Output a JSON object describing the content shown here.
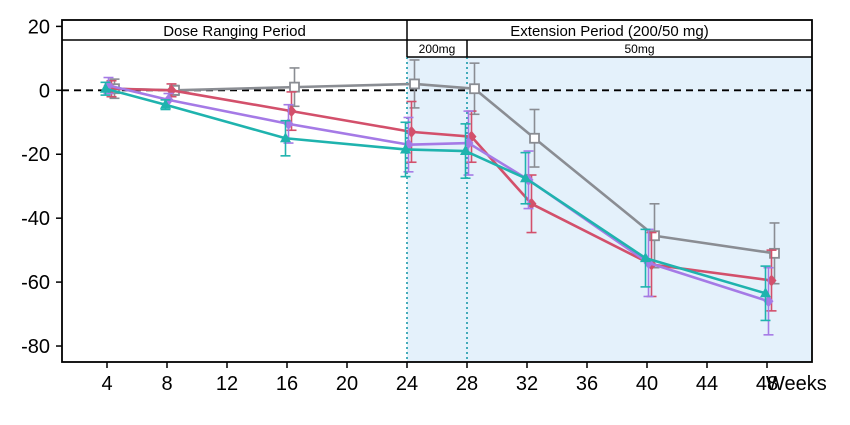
{
  "chart_data": {
    "type": "line",
    "xlabel": "Weeks",
    "ylabel": "",
    "xlim": [
      1,
      51
    ],
    "ylim": [
      -85,
      22
    ],
    "x_ticks": [
      4,
      8,
      12,
      16,
      20,
      24,
      28,
      32,
      36,
      40,
      44,
      48
    ],
    "y_ticks": [
      20,
      0,
      -20,
      -40,
      -60,
      -80
    ],
    "reference_line_y": 0,
    "period_dividers_x": [
      24,
      28
    ],
    "periods": {
      "dose_ranging": "Dose Ranging Period",
      "extension": "Extension Period (200/50 mg)",
      "sub_200": "200mg",
      "sub_50": "50mg"
    },
    "colors": {
      "gray": "#8a8d93",
      "red": "#d3506b",
      "purple": "#a57ae6",
      "teal": "#1fb3ae",
      "shade": "#e4f1fb",
      "divider": "#1a9aaa"
    },
    "series": [
      {
        "color": "#8a8d93",
        "marker": "square-open",
        "x": [
          4.5,
          8.5,
          16.5,
          24.5,
          28.5,
          32.5,
          40.5,
          48.5
        ],
        "y": [
          0.5,
          0,
          1,
          2,
          0.5,
          -15,
          -45.5,
          -51
        ],
        "err": [
          3,
          1.5,
          6,
          7.5,
          8,
          9,
          10,
          9.5
        ]
      },
      {
        "color": "#d3506b",
        "marker": "diamond",
        "x": [
          4.3,
          8.3,
          16.3,
          24.3,
          28.3,
          32.3,
          40.3,
          48.3
        ],
        "y": [
          0.5,
          0,
          -6.5,
          -13,
          -14.5,
          -35.5,
          -54.5,
          -59.5
        ],
        "err": [
          2.5,
          2,
          6,
          9.5,
          8,
          9,
          10,
          9.5
        ]
      },
      {
        "color": "#a57ae6",
        "marker": "diamond",
        "x": [
          4.1,
          8.1,
          16.1,
          24.1,
          28.1,
          32.1,
          40.1,
          48.1
        ],
        "y": [
          1.5,
          -3,
          -10.5,
          -17,
          -16.5,
          -28,
          -54,
          -66
        ],
        "err": [
          2.5,
          2,
          6,
          8.5,
          10,
          9,
          10.5,
          10.5
        ]
      },
      {
        "color": "#1fb3ae",
        "marker": "triangle",
        "x": [
          3.9,
          7.9,
          15.9,
          23.9,
          27.9,
          31.9,
          39.9,
          47.9
        ],
        "y": [
          0.5,
          -4.5,
          -15,
          -18.5,
          -19,
          -27.5,
          -52.5,
          -63.5
        ],
        "err": [
          2,
          1.5,
          5.5,
          8.5,
          8.5,
          8,
          9,
          8.5
        ]
      }
    ]
  }
}
